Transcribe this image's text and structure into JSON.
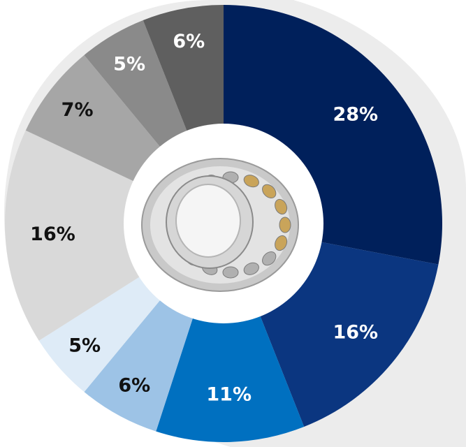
{
  "chart_data": {
    "type": "pie",
    "title": "",
    "center_image": "spherical-roller-bearing",
    "slices": [
      {
        "label": "28%",
        "value": 28,
        "color": "#00205b",
        "label_color": "#ffffff"
      },
      {
        "label": "16%",
        "value": 16,
        "color": "#0b3680",
        "label_color": "#ffffff"
      },
      {
        "label": "11%",
        "value": 11,
        "color": "#0070c0",
        "label_color": "#ffffff"
      },
      {
        "label": "6%",
        "value": 6,
        "color": "#9dc3e6",
        "label_color": "#111111"
      },
      {
        "label": "5%",
        "value": 5,
        "color": "#deebf7",
        "label_color": "#111111"
      },
      {
        "label": "16%",
        "value": 16,
        "color": "#d9d9d9",
        "label_color": "#111111"
      },
      {
        "label": "7%",
        "value": 7,
        "color": "#a6a6a6",
        "label_color": "#111111"
      },
      {
        "label": "5%",
        "value": 5,
        "color": "#8a8a8a",
        "label_color": "#ffffff"
      },
      {
        "label": "6%",
        "value": 6,
        "color": "#5f5f5f",
        "label_color": "#ffffff"
      }
    ]
  }
}
